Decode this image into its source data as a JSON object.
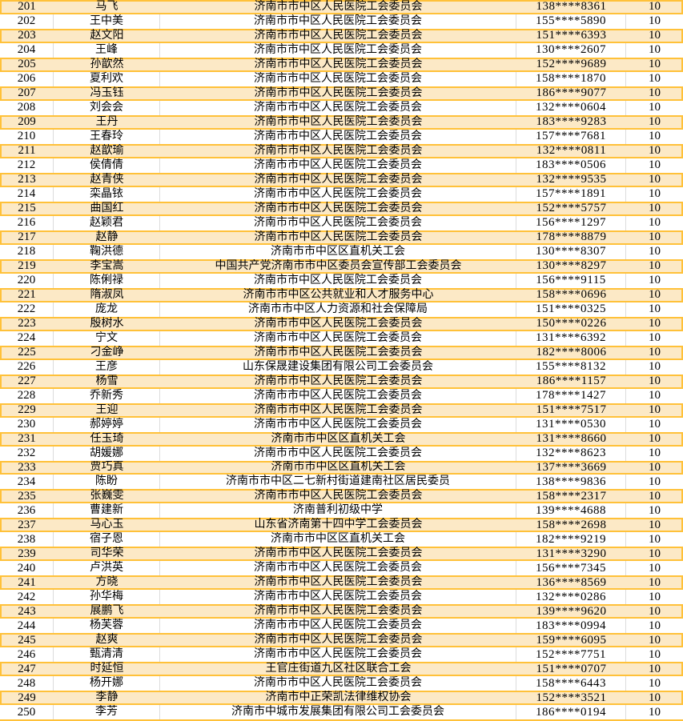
{
  "colors": {
    "highlight_fill": "#FCE9C6",
    "highlight_border": "#FFC139",
    "grid_line": "#DCDCDC"
  },
  "table": {
    "rows": [
      {
        "no": "201",
        "name": "马飞",
        "org": "济南市市中区人民医院工会委员会",
        "phone": "138****8361",
        "score": "10"
      },
      {
        "no": "202",
        "name": "王中美",
        "org": "济南市市中区人民医院工会委员会",
        "phone": "155****5890",
        "score": "10"
      },
      {
        "no": "203",
        "name": "赵文阳",
        "org": "济南市市中区人民医院工会委员会",
        "phone": "151****6393",
        "score": "10"
      },
      {
        "no": "204",
        "name": "王峰",
        "org": "济南市市中区人民医院工会委员会",
        "phone": "130****2607",
        "score": "10"
      },
      {
        "no": "205",
        "name": "孙歆然",
        "org": "济南市市中区人民医院工会委员会",
        "phone": "152****9689",
        "score": "10"
      },
      {
        "no": "206",
        "name": "夏利欢",
        "org": "济南市市中区人民医院工会委员会",
        "phone": "158****1870",
        "score": "10"
      },
      {
        "no": "207",
        "name": "冯玉钰",
        "org": "济南市市中区人民医院工会委员会",
        "phone": "186****9077",
        "score": "10"
      },
      {
        "no": "208",
        "name": "刘会会",
        "org": "济南市市中区人民医院工会委员会",
        "phone": "132****0604",
        "score": "10"
      },
      {
        "no": "209",
        "name": "王丹",
        "org": "济南市市中区人民医院工会委员会",
        "phone": "183****9283",
        "score": "10"
      },
      {
        "no": "210",
        "name": "王春玲",
        "org": "济南市市中区人民医院工会委员会",
        "phone": "157****7681",
        "score": "10"
      },
      {
        "no": "211",
        "name": "赵歆瑜",
        "org": "济南市市中区人民医院工会委员会",
        "phone": "132****0811",
        "score": "10"
      },
      {
        "no": "212",
        "name": "侯倩倩",
        "org": "济南市市中区人民医院工会委员会",
        "phone": "183****0506",
        "score": "10"
      },
      {
        "no": "213",
        "name": "赵青侠",
        "org": "济南市市中区人民医院工会委员会",
        "phone": "132****9535",
        "score": "10"
      },
      {
        "no": "214",
        "name": "栾晶铱",
        "org": "济南市市中区人民医院工会委员会",
        "phone": "157****1891",
        "score": "10"
      },
      {
        "no": "215",
        "name": "曲国红",
        "org": "济南市市中区人民医院工会委员会",
        "phone": "152****5757",
        "score": "10"
      },
      {
        "no": "216",
        "name": "赵颖君",
        "org": "济南市市中区人民医院工会委员会",
        "phone": "156****1297",
        "score": "10"
      },
      {
        "no": "217",
        "name": "赵静",
        "org": "济南市市中区人民医院工会委员会",
        "phone": "178****8879",
        "score": "10"
      },
      {
        "no": "218",
        "name": "鞠洪德",
        "org": "济南市市中区区直机关工会",
        "phone": "130****8307",
        "score": "10"
      },
      {
        "no": "219",
        "name": "李宝嵩",
        "org": "中国共产党济南市市中区委员会宣传部工会委员会",
        "phone": "130****8297",
        "score": "10"
      },
      {
        "no": "220",
        "name": "陈俐禄",
        "org": "济南市市中区人民医院工会委员会",
        "phone": "156****9115",
        "score": "10"
      },
      {
        "no": "221",
        "name": "隋淑凤",
        "org": "济南市市中区公共就业和人才服务中心",
        "phone": "158****0696",
        "score": "10"
      },
      {
        "no": "222",
        "name": "庞龙",
        "org": "济南市市中区人力资源和社会保障局",
        "phone": "151****0325",
        "score": "10"
      },
      {
        "no": "223",
        "name": "殷树水",
        "org": "济南市市中区人民医院工会委员会",
        "phone": "150****0226",
        "score": "10"
      },
      {
        "no": "224",
        "name": "宁文",
        "org": "济南市市中区人民医院工会委员会",
        "phone": "131****6392",
        "score": "10"
      },
      {
        "no": "225",
        "name": "刁金峥",
        "org": "济南市市中区人民医院工会委员会",
        "phone": "182****8006",
        "score": "10"
      },
      {
        "no": "226",
        "name": "王彦",
        "org": "山东保晟建设集团有限公司工会委员会",
        "phone": "155****8132",
        "score": "10"
      },
      {
        "no": "227",
        "name": "杨雪",
        "org": "济南市市中区人民医院工会委员会",
        "phone": "186****1157",
        "score": "10"
      },
      {
        "no": "228",
        "name": "乔新秀",
        "org": "济南市市中区人民医院工会委员会",
        "phone": "178****1427",
        "score": "10"
      },
      {
        "no": "229",
        "name": "王迎",
        "org": "济南市市中区人民医院工会委员会",
        "phone": "151****7517",
        "score": "10"
      },
      {
        "no": "230",
        "name": "郝婷婷",
        "org": "济南市市中区人民医院工会委员会",
        "phone": "131****0530",
        "score": "10"
      },
      {
        "no": "231",
        "name": "任玉琦",
        "org": "济南市市中区区直机关工会",
        "phone": "131****8660",
        "score": "10"
      },
      {
        "no": "232",
        "name": "胡媛娜",
        "org": "济南市市中区人民医院工会委员会",
        "phone": "132****8623",
        "score": "10"
      },
      {
        "no": "233",
        "name": "贾巧真",
        "org": "济南市市中区区直机关工会",
        "phone": "137****3669",
        "score": "10"
      },
      {
        "no": "234",
        "name": "陈盼",
        "org": "济南市市中区二七新村街道建南社区居民委员",
        "phone": "138****9836",
        "score": "10"
      },
      {
        "no": "235",
        "name": "张巍雯",
        "org": "济南市市中区人民医院工会委员会",
        "phone": "158****2317",
        "score": "10"
      },
      {
        "no": "236",
        "name": "曹建新",
        "org": "济南普利初级中学",
        "phone": "139****4688",
        "score": "10"
      },
      {
        "no": "237",
        "name": "马心玉",
        "org": "山东省济南第十四中学工会委员会",
        "phone": "158****2698",
        "score": "10"
      },
      {
        "no": "238",
        "name": "宿子恩",
        "org": "济南市市中区区直机关工会",
        "phone": "182****9219",
        "score": "10"
      },
      {
        "no": "239",
        "name": "司华荣",
        "org": "济南市市中区人民医院工会委员会",
        "phone": "131****3290",
        "score": "10"
      },
      {
        "no": "240",
        "name": "卢洪英",
        "org": "济南市市中区人民医院工会委员会",
        "phone": "156****7345",
        "score": "10"
      },
      {
        "no": "241",
        "name": "方晓",
        "org": "济南市市中区人民医院工会委员会",
        "phone": "136****8569",
        "score": "10"
      },
      {
        "no": "242",
        "name": "孙华梅",
        "org": "济南市市中区人民医院工会委员会",
        "phone": "132****0286",
        "score": "10"
      },
      {
        "no": "243",
        "name": "展鹏飞",
        "org": "济南市市中区人民医院工会委员会",
        "phone": "139****9620",
        "score": "10"
      },
      {
        "no": "244",
        "name": "杨芙蓉",
        "org": "济南市市中区人民医院工会委员会",
        "phone": "183****0994",
        "score": "10"
      },
      {
        "no": "245",
        "name": "赵爽",
        "org": "济南市市中区人民医院工会委员会",
        "phone": "159****6095",
        "score": "10"
      },
      {
        "no": "246",
        "name": "甄清清",
        "org": "济南市市中区人民医院工会委员会",
        "phone": "152****7751",
        "score": "10"
      },
      {
        "no": "247",
        "name": "时延恒",
        "org": "王官庄街道九区社区联合工会",
        "phone": "151****0707",
        "score": "10"
      },
      {
        "no": "248",
        "name": "杨开娜",
        "org": "济南市市中区人民医院工会委员会",
        "phone": "158****6443",
        "score": "10"
      },
      {
        "no": "249",
        "name": "李静",
        "org": "济南市中正荣凯法律维权协会",
        "phone": "152****3521",
        "score": "10"
      },
      {
        "no": "250",
        "name": "李芳",
        "org": "济南市中城市发展集团有限公司工会委员会",
        "phone": "186****0194",
        "score": "10"
      }
    ]
  }
}
